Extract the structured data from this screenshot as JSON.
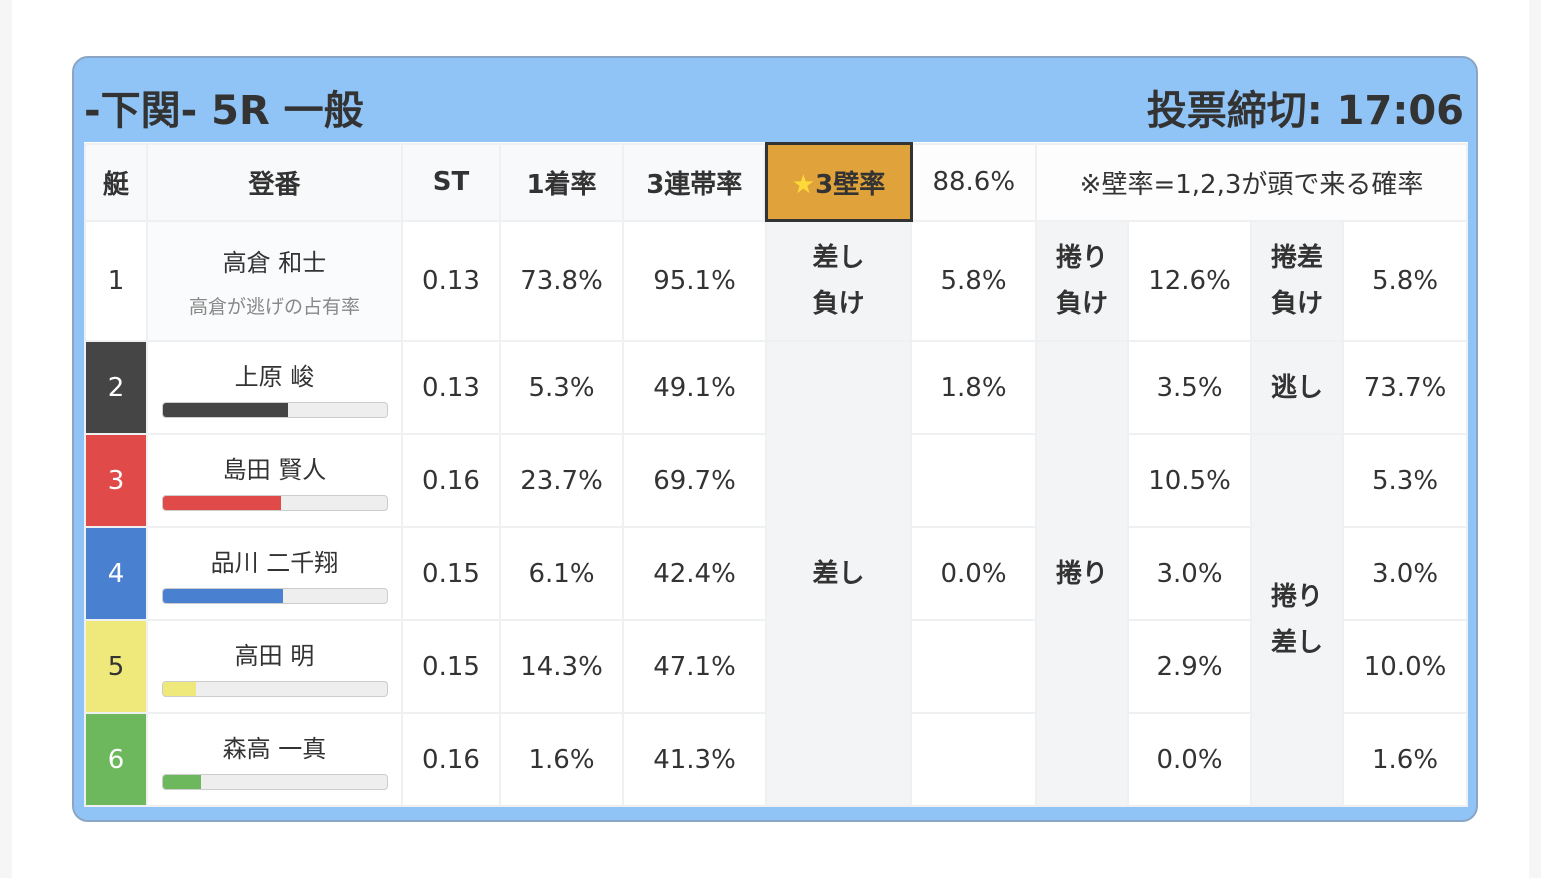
{
  "header": {
    "title": "-下関- 5R 一般",
    "deadline": "投票締切: 17:06"
  },
  "columns": {
    "boat": "艇",
    "reg": "登番",
    "st": "ST",
    "win": "1着率",
    "top3": "3連帯率",
    "wall": "★3壁率",
    "wall_value": "88.6%",
    "note": "※壁率=1,2,3が頭で来る確率"
  },
  "row1": {
    "boat": "1",
    "name": "高倉 和士",
    "sub": "高倉が逃げの占有率",
    "st": "0.13",
    "win": "73.8%",
    "top3": "95.1%",
    "l1": "差し負け",
    "v1": "5.8%",
    "l2": "捲り負け",
    "v2": "12.6%",
    "l3": "捲差負け",
    "v3": "5.8%"
  },
  "labels": {
    "sashi": "差し",
    "makuri": "捲り",
    "nige": "逃し",
    "makurisashi": "捲り差し"
  },
  "racers": [
    {
      "boat": "2",
      "name": "上原 峻",
      "st": "0.13",
      "win": "5.3%",
      "top3": "49.1%",
      "sashi": "1.8%",
      "makuri": "3.5%",
      "third": "73.7%",
      "color": "#454545",
      "bar": 56
    },
    {
      "boat": "3",
      "name": "島田 賢人",
      "st": "0.16",
      "win": "23.7%",
      "top3": "69.7%",
      "sashi": "",
      "makuri": "10.5%",
      "third": "5.3%",
      "color": "#e04b4a",
      "bar": 53
    },
    {
      "boat": "4",
      "name": "品川 二千翔",
      "st": "0.15",
      "win": "6.1%",
      "top3": "42.4%",
      "sashi": "0.0%",
      "makuri": "3.0%",
      "third": "3.0%",
      "color": "#4a80d0",
      "bar": 54
    },
    {
      "boat": "5",
      "name": "高田 明",
      "st": "0.15",
      "win": "14.3%",
      "top3": "47.1%",
      "sashi": "",
      "makuri": "2.9%",
      "third": "10.0%",
      "color": "#efe87a",
      "bar": 15
    },
    {
      "boat": "6",
      "name": "森高 一真",
      "st": "0.16",
      "win": "1.6%",
      "top3": "41.3%",
      "sashi": "",
      "makuri": "0.0%",
      "third": "1.6%",
      "color": "#6db85c",
      "bar": 17
    }
  ]
}
